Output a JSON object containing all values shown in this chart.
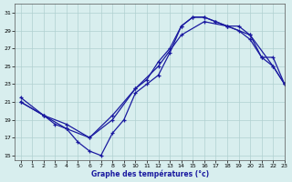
{
  "title": "Graphe des températures (°c)",
  "bg_color": "#d8eeee",
  "grid_color": "#b0d0d0",
  "line_color": "#1a1aa0",
  "xlim": [
    -0.5,
    23
  ],
  "ylim": [
    14.5,
    32
  ],
  "xticks": [
    0,
    1,
    2,
    3,
    4,
    5,
    6,
    7,
    8,
    9,
    10,
    11,
    12,
    13,
    14,
    15,
    16,
    17,
    18,
    19,
    20,
    21,
    22,
    23
  ],
  "yticks": [
    15,
    17,
    19,
    21,
    23,
    25,
    27,
    29,
    31
  ],
  "line1_x": [
    0,
    2,
    4,
    6,
    8,
    10,
    11,
    12,
    13,
    14,
    15,
    16,
    17,
    18,
    19,
    20,
    21,
    22,
    23
  ],
  "line1_y": [
    21.0,
    19.5,
    18.0,
    17.0,
    19.0,
    22.5,
    23.5,
    25.5,
    27.0,
    29.5,
    30.5,
    30.5,
    30.0,
    29.5,
    29.0,
    28.0,
    26.0,
    26.0,
    23.0
  ],
  "line2_x": [
    0,
    2,
    3,
    4,
    5,
    6,
    7,
    8,
    9,
    10,
    11,
    12,
    13,
    14,
    15,
    16,
    17,
    18,
    19,
    20,
    21,
    22,
    23
  ],
  "line2_y": [
    21.5,
    19.5,
    18.5,
    18.0,
    16.5,
    15.5,
    15.0,
    17.5,
    19.0,
    22.0,
    23.0,
    24.0,
    26.5,
    29.5,
    30.5,
    30.5,
    30.0,
    29.5,
    29.5,
    28.5,
    26.0,
    25.0,
    23.0
  ],
  "line3_x": [
    0,
    2,
    4,
    6,
    8,
    10,
    12,
    14,
    16,
    18,
    20,
    22,
    23
  ],
  "line3_y": [
    21.0,
    19.5,
    18.5,
    17.0,
    19.5,
    22.5,
    25.0,
    28.5,
    30.0,
    29.5,
    28.5,
    25.0,
    23.0
  ]
}
